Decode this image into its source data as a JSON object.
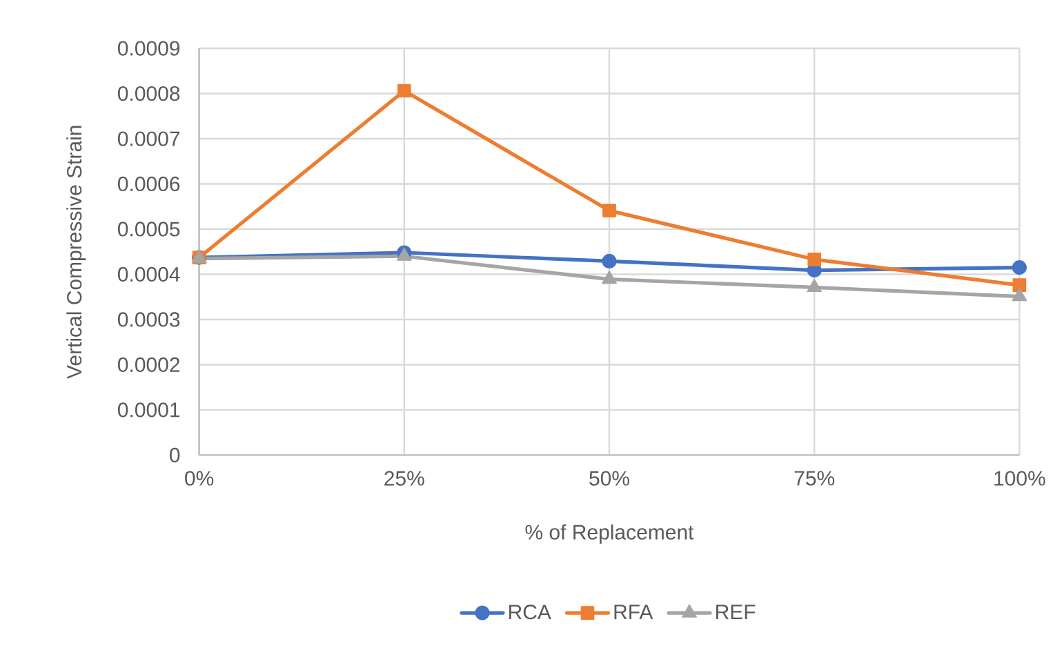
{
  "chart_data": {
    "type": "line",
    "xlabel": "% of Replacement",
    "ylabel": "Vertical Compressive Strain",
    "categories": [
      "0%",
      "25%",
      "50%",
      "75%",
      "100%"
    ],
    "ylim": [
      0,
      0.0009
    ],
    "yticks": [
      0,
      0.0001,
      0.0002,
      0.0003,
      0.0004,
      0.0005,
      0.0006,
      0.0007,
      0.0008,
      0.0009
    ],
    "grid": true,
    "legend": "bottom",
    "series": [
      {
        "name": "RCA",
        "color": "#4472c4",
        "marker": "circle",
        "values": [
          0.000437,
          0.000448,
          0.000429,
          0.000409,
          0.000415
        ]
      },
      {
        "name": "RFA",
        "color": "#ed7d31",
        "marker": "square",
        "values": [
          0.000437,
          0.000806,
          0.000541,
          0.000433,
          0.000376
        ]
      },
      {
        "name": "REF",
        "color": "#a5a5a5",
        "marker": "triangle",
        "values": [
          0.000435,
          0.00044,
          0.000389,
          0.000371,
          0.000351
        ]
      }
    ]
  }
}
